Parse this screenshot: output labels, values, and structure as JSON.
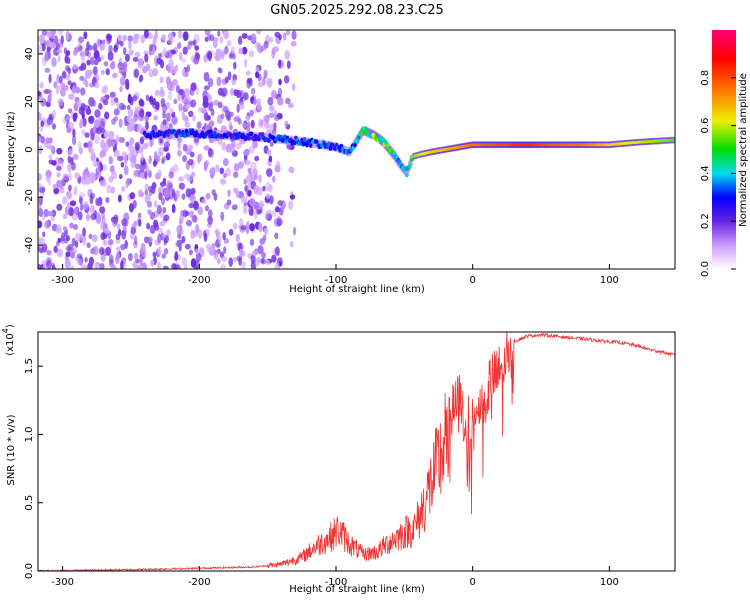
{
  "title": "GN05.2025.292.08.23.C25",
  "colors": {
    "snr_line": "#ee3333",
    "cmap": [
      "#ffffff",
      "#cc99ff",
      "#6622dd",
      "#0000ff",
      "#00ddee",
      "#00dd00",
      "#eeee00",
      "#ff7700",
      "#ff0000",
      "#ff0077"
    ]
  },
  "chart_data": [
    {
      "type": "heatmap",
      "name": "spectrogram",
      "xlabel": "Height of straight line (km)",
      "ylabel": "Frequency (Hz)",
      "xlim": [
        -318,
        148
      ],
      "ylim": [
        -50,
        50
      ],
      "xticks": [
        -300,
        -200,
        -100,
        0,
        100
      ],
      "xtick_labels": [
        "-300",
        "-200",
        "-100",
        "0",
        "100"
      ],
      "yticks": [
        -40,
        -20,
        0,
        20,
        40
      ],
      "ytick_labels": [
        "-40",
        "-20",
        "0",
        "20",
        "40"
      ],
      "colorbar": {
        "label": "Normalized spectral amplitude",
        "range": [
          0,
          1
        ],
        "ticks": [
          0.0,
          0.2,
          0.4,
          0.6,
          0.8
        ],
        "tick_labels": [
          "0.0",
          "0.2",
          "0.4",
          "0.6",
          "0.8"
        ]
      },
      "ridge": {
        "x": [
          -240,
          -210,
          -180,
          -150,
          -120,
          -100,
          -90,
          -80,
          -72,
          -65,
          -58,
          -52,
          -48,
          -44,
          -38,
          -30,
          -20,
          -10,
          0,
          20,
          40,
          60,
          80,
          100,
          120,
          148
        ],
        "freq": [
          6,
          7,
          6,
          5,
          3,
          1,
          -1,
          8,
          6,
          3,
          -2,
          -7,
          -10,
          -3,
          -2,
          -1,
          0,
          1,
          2,
          2,
          2,
          2,
          2,
          2,
          3,
          4
        ],
        "amplitude": [
          0.3,
          0.32,
          0.3,
          0.32,
          0.35,
          0.35,
          0.33,
          0.5,
          0.55,
          0.55,
          0.5,
          0.45,
          0.42,
          0.6,
          0.65,
          0.7,
          0.72,
          0.75,
          0.78,
          0.82,
          0.85,
          0.8,
          0.78,
          0.7,
          0.65,
          0.6
        ]
      }
    },
    {
      "type": "line",
      "name": "snr",
      "xlabel": "Height of straight line (km)",
      "ylabel": "SNR (10 * v/v)",
      "y_multiplier": "(x10^4)",
      "y_multiplier_base": "(x10",
      "y_multiplier_exp": "4",
      "y_multiplier_close": ")",
      "xlim": [
        -318,
        148
      ],
      "ylim": [
        0,
        1.75
      ],
      "xticks": [
        -300,
        -200,
        -100,
        0,
        100
      ],
      "xtick_labels": [
        "-300",
        "-200",
        "-100",
        "0",
        "100"
      ],
      "yticks": [
        0.0,
        0.5,
        1.0,
        1.5
      ],
      "ytick_labels": [
        "0.0",
        "0.5",
        "1.0",
        "1.5"
      ],
      "x": [
        -318,
        -250,
        -200,
        -160,
        -140,
        -125,
        -115,
        -105,
        -98,
        -90,
        -80,
        -70,
        -60,
        -50,
        -42,
        -35,
        -30,
        -25,
        -20,
        -15,
        -10,
        -5,
        0,
        5,
        10,
        15,
        20,
        25,
        30,
        40,
        50,
        60,
        70,
        80,
        90,
        100,
        110,
        120,
        130,
        140,
        148
      ],
      "y": [
        0.0,
        0.01,
        0.02,
        0.03,
        0.05,
        0.1,
        0.18,
        0.24,
        0.3,
        0.2,
        0.12,
        0.14,
        0.22,
        0.28,
        0.32,
        0.5,
        0.65,
        0.78,
        0.95,
        1.15,
        1.25,
        1.1,
        1.05,
        1.2,
        1.35,
        1.4,
        1.45,
        1.6,
        1.68,
        1.72,
        1.73,
        1.72,
        1.71,
        1.7,
        1.69,
        1.68,
        1.67,
        1.65,
        1.62,
        1.6,
        1.58
      ]
    }
  ]
}
